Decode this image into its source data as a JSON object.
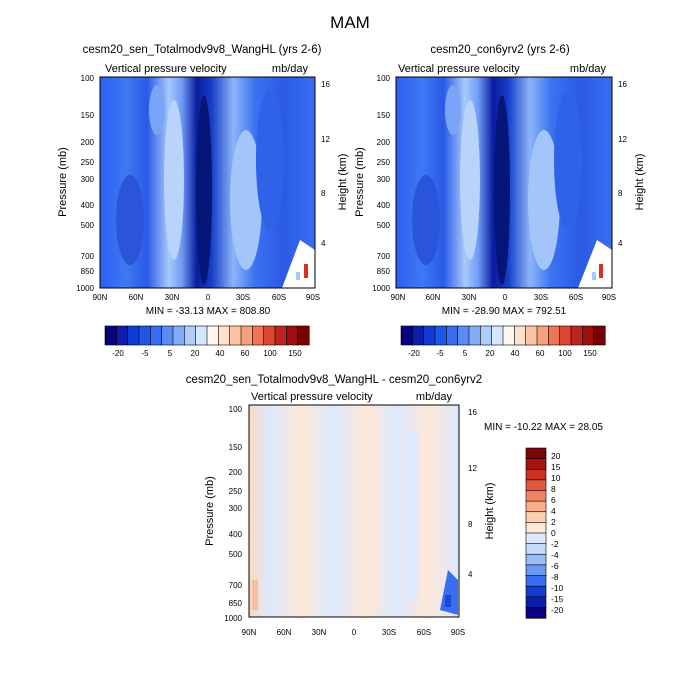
{
  "page_title": "MAM",
  "colors": {
    "scale_top": [
      "#08007f",
      "#0b1eaa",
      "#0f3cd2",
      "#1e56e8",
      "#3a6ef0",
      "#5a8cf4",
      "#82aef8",
      "#adcdfb",
      "#d6e8fd",
      "#fff7ed",
      "#fde0c8",
      "#fbc3a3",
      "#f7a07c",
      "#ee7654",
      "#dc4631",
      "#c0241f",
      "#9c0e10",
      "#740306"
    ],
    "scale_diff": [
      "#08007f",
      "#0b1eaa",
      "#0f3cd2",
      "#3a6ef0",
      "#6a98f5",
      "#99bcf9",
      "#c4dbfc",
      "#dde9fe",
      "#fde8d8",
      "#fbd0b3",
      "#f7ad8c",
      "#ef8462",
      "#e15a3e",
      "#c83020",
      "#a61410",
      "#7a0606"
    ]
  },
  "chart_data": [
    {
      "type": "heatmap",
      "title": "cesm20_sen_Totalmodv9v8_WangHL (yrs 2-6)",
      "subtitle_left": "Vertical pressure velocity",
      "subtitle_right": "mb/day",
      "ylabel": "Pressure (mb)",
      "ylabel_right": "Height (km)",
      "x_ticks": [
        "90N",
        "60N",
        "30N",
        "0",
        "30S",
        "60S",
        "90S"
      ],
      "y_ticks": [
        "100",
        "150",
        "200",
        "250",
        "300",
        "400",
        "500",
        "700",
        "850",
        "1000"
      ],
      "y_ticks_right": [
        "16",
        "12",
        "8",
        "4"
      ],
      "y_scale": "log",
      "ylim": [
        1000,
        100
      ],
      "xlim": [
        90,
        -90
      ],
      "stats": "MIN = -33.13  MAX = 808.80",
      "colorbar_labels": [
        "-20",
        "-5",
        "5",
        "20",
        "40",
        "60",
        "100",
        "150"
      ],
      "colorbar_orientation": "horizontal",
      "grid": false
    },
    {
      "type": "heatmap",
      "title": "cesm20_con6yrv2 (yrs 2-6)",
      "subtitle_left": "Vertical pressure velocity",
      "subtitle_right": "mb/day",
      "ylabel": "Pressure (mb)",
      "ylabel_right": "Height (km)",
      "x_ticks": [
        "90N",
        "60N",
        "30N",
        "0",
        "30S",
        "60S",
        "90S"
      ],
      "y_ticks": [
        "100",
        "150",
        "200",
        "250",
        "300",
        "400",
        "500",
        "700",
        "850",
        "1000"
      ],
      "y_ticks_right": [
        "16",
        "12",
        "8",
        "4"
      ],
      "y_scale": "log",
      "ylim": [
        1000,
        100
      ],
      "xlim": [
        90,
        -90
      ],
      "stats": "MIN = -28.90  MAX = 792.51",
      "colorbar_labels": [
        "-20",
        "-5",
        "5",
        "20",
        "40",
        "60",
        "100",
        "150"
      ],
      "colorbar_orientation": "horizontal",
      "grid": false
    },
    {
      "type": "heatmap",
      "title": "cesm20_sen_Totalmodv9v8_WangHL - cesm20_con6yrv2",
      "subtitle_left": "Vertical pressure velocity",
      "subtitle_right": "mb/day",
      "ylabel": "Pressure (mb)",
      "ylabel_right": "Height (km)",
      "x_ticks": [
        "90N",
        "60N",
        "30N",
        "0",
        "30S",
        "60S",
        "90S"
      ],
      "y_ticks": [
        "100",
        "150",
        "200",
        "250",
        "300",
        "400",
        "500",
        "700",
        "850",
        "1000"
      ],
      "y_ticks_right": [
        "16",
        "12",
        "8",
        "4"
      ],
      "y_scale": "log",
      "ylim": [
        1000,
        100
      ],
      "xlim": [
        90,
        -90
      ],
      "stats": "MIN = -10.22  MAX =  28.05",
      "colorbar_labels": [
        "20",
        "15",
        "10",
        "8",
        "6",
        "4",
        "2",
        "0",
        "-2",
        "-4",
        "-6",
        "-8",
        "-10",
        "-15",
        "-20"
      ],
      "colorbar_orientation": "vertical",
      "grid": false
    }
  ]
}
